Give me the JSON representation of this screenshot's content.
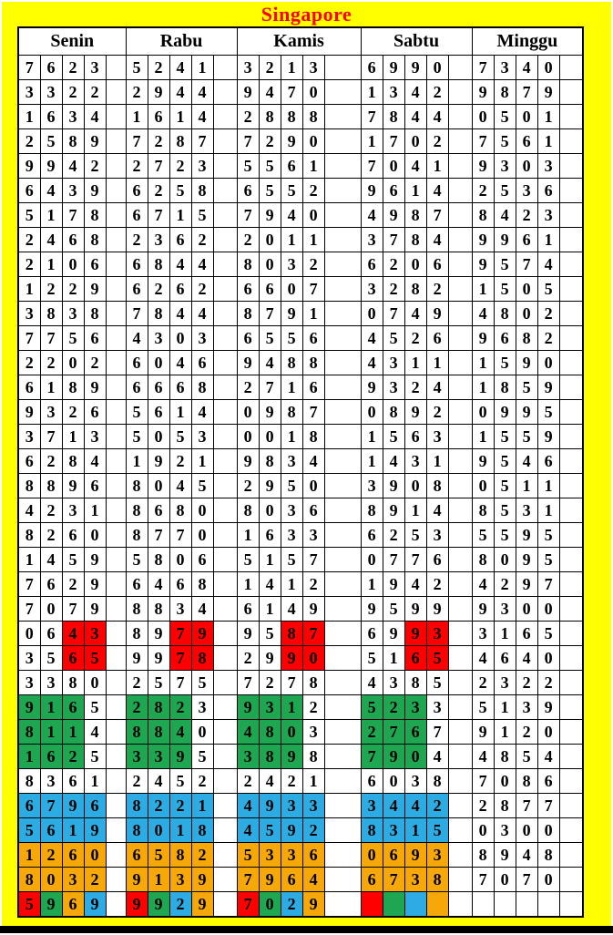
{
  "title": "Singapore",
  "title_color": "#FF0000",
  "background_color": "#FFFF00",
  "columns": [
    "Senin",
    "Rabu",
    "Kamis",
    "Sabtu",
    "Minggu"
  ],
  "highlight_colors": {
    "red": "#FF0000",
    "green": "#1FA650",
    "blue": "#2CACE3",
    "orange": "#F7A809"
  },
  "spacer_widths": [
    22,
    26,
    40,
    26,
    26
  ],
  "rows": [
    [
      "7623",
      "5241",
      "3213",
      "6990",
      "7340"
    ],
    [
      "3322",
      "2944",
      "9470",
      "1342",
      "9879"
    ],
    [
      "1634",
      "1614",
      "2888",
      "7844",
      "0501"
    ],
    [
      "2589",
      "7287",
      "7290",
      "1702",
      "7561"
    ],
    [
      "9942",
      "2723",
      "5561",
      "7041",
      "9303"
    ],
    [
      "6439",
      "6258",
      "6552",
      "9614",
      "2536"
    ],
    [
      "5178",
      "6715",
      "7940",
      "4987",
      "8423"
    ],
    [
      "2468",
      "2362",
      "2011",
      "3784",
      "9961"
    ],
    [
      "2106",
      "6844",
      "8032",
      "6206",
      "9574"
    ],
    [
      "1229",
      "6262",
      "6607",
      "3282",
      "1505"
    ],
    [
      "3838",
      "7844",
      "8791",
      "0749",
      "4802"
    ],
    [
      "7756",
      "4303",
      "6556",
      "4526",
      "9682"
    ],
    [
      "2202",
      "6046",
      "9488",
      "4311",
      "1590"
    ],
    [
      "6189",
      "6668",
      "2716",
      "9324",
      "1859"
    ],
    [
      "9326",
      "5614",
      "0987",
      "0892",
      "0995"
    ],
    [
      "3713",
      "5053",
      "0018",
      "1563",
      "1559"
    ],
    [
      "6284",
      "1921",
      "9834",
      "1431",
      "9546"
    ],
    [
      "8896",
      "8045",
      "2950",
      "3908",
      "0511"
    ],
    [
      "4231",
      "8680",
      "8036",
      "8914",
      "8531"
    ],
    [
      "8260",
      "8770",
      "1633",
      "6253",
      "5595"
    ],
    [
      "1459",
      "5806",
      "5157",
      "0776",
      "8095"
    ],
    [
      "7629",
      "6468",
      "1412",
      "1942",
      "4297"
    ],
    [
      "7079",
      "8834",
      "6149",
      "9599",
      "9300"
    ],
    [
      [
        "0643",
        "..RR"
      ],
      [
        "8979",
        "..RR"
      ],
      [
        "9587",
        "..RR"
      ],
      [
        "6993",
        "..RR"
      ],
      "3165"
    ],
    [
      [
        "3565",
        "..RR"
      ],
      [
        "9978",
        "..RR"
      ],
      [
        "2990",
        "..RR"
      ],
      [
        "5165",
        "..RR"
      ],
      "4640"
    ],
    [
      "3380",
      "2575",
      "7278",
      "4385",
      "2322"
    ],
    [
      [
        "9165",
        "GGG."
      ],
      [
        "2823",
        "GGG."
      ],
      [
        "9312",
        "GGG."
      ],
      [
        "5233",
        "GGG."
      ],
      "5139"
    ],
    [
      [
        "8114",
        "GGG."
      ],
      [
        "8840",
        "GGG."
      ],
      [
        "4803",
        "GGG."
      ],
      [
        "2767",
        "GGG."
      ],
      "9120"
    ],
    [
      [
        "1625",
        "GGG."
      ],
      [
        "3395",
        "GGG."
      ],
      [
        "3898",
        "GGG."
      ],
      [
        "7904",
        "GGG."
      ],
      "4854"
    ],
    [
      "8361",
      "2452",
      "2421",
      "6038",
      "7086"
    ],
    [
      [
        "6796",
        "BBBB"
      ],
      [
        "8221",
        "BBBB"
      ],
      [
        "4933",
        "BBBB"
      ],
      [
        "3442",
        "BBBB"
      ],
      "2877"
    ],
    [
      [
        "5619",
        "BBBB"
      ],
      [
        "8018",
        "BBBB"
      ],
      [
        "4592",
        "BBBB"
      ],
      [
        "8315",
        "BBBB"
      ],
      "0300"
    ],
    [
      [
        "1260",
        "OOOO"
      ],
      [
        "6582",
        "OOOO"
      ],
      [
        "5336",
        "OOOO"
      ],
      [
        "0693",
        "OOOO"
      ],
      "8948"
    ],
    [
      [
        "8032",
        "OOOO"
      ],
      [
        "9139",
        "OOOO"
      ],
      [
        "7964",
        "OOOO"
      ],
      [
        "6738",
        "OOOO"
      ],
      "7070"
    ],
    [
      [
        "5969",
        "RGOB"
      ],
      [
        "9929",
        "RGBO"
      ],
      [
        "7029",
        "RGBO"
      ],
      [
        "",
        "RGBO"
      ],
      [
        "",
        "...."
      ]
    ]
  ]
}
